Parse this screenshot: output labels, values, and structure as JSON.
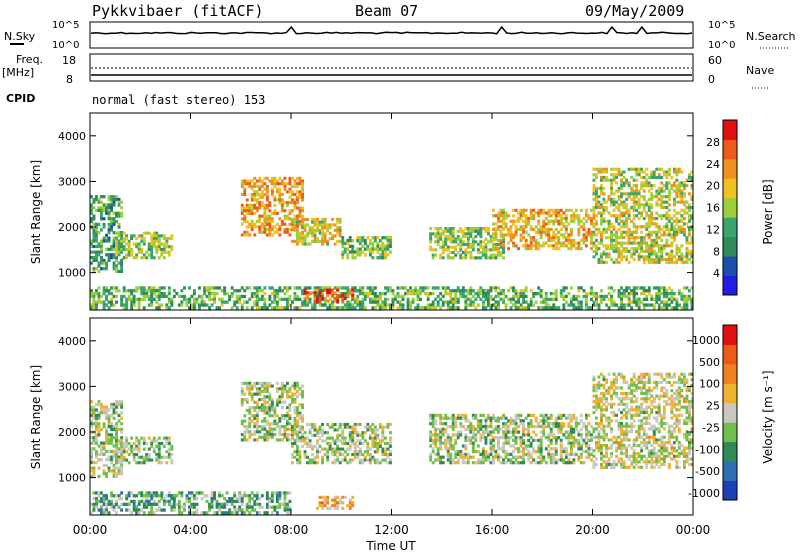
{
  "header": {
    "title": "Pykkvibaer (fitACF)",
    "beam": "Beam 07",
    "date": "09/May/2009"
  },
  "strip": {
    "nsky_label": "N.Sky",
    "nsky_ticks": [
      "10^5",
      "10^0"
    ],
    "nsearch_label": "N.Search",
    "nsearch_ticks": [
      "10^5",
      "10^0"
    ],
    "freq_label": "Freq.",
    "freq_unit": "[MHz]",
    "freq_ticks": [
      "18",
      "8"
    ],
    "nave_label": "Nave",
    "nave_ticks": [
      "60",
      "0"
    ],
    "cpid_label": "CPID",
    "cpid_text": "normal (fast stereo) 153"
  },
  "chart_data": [
    {
      "type": "heatmap",
      "name": "power",
      "ylabel": "Slant Range [km]",
      "ylim": [
        180,
        4500
      ],
      "yticks": [
        "1000",
        "2000",
        "3000",
        "4000"
      ],
      "xlim": [
        0,
        24
      ],
      "colorbar": {
        "label": "Power [dB]",
        "ticks": [
          "4",
          "8",
          "12",
          "16",
          "20",
          "24",
          "28"
        ],
        "colors": [
          "#1e1ee6",
          "#1a4fb0",
          "#2f8a55",
          "#3aa56a",
          "#9ccf3a",
          "#f2c020",
          "#f09020",
          "#ef5a1a",
          "#e01010"
        ]
      },
      "bands": [
        {
          "t0": 0.0,
          "t1": 1.3,
          "r0": 1000,
          "r1": 2700,
          "level": 0.35
        },
        {
          "t0": 1.0,
          "t1": 3.3,
          "r0": 1300,
          "r1": 1900,
          "level": 0.5
        },
        {
          "t0": 6.0,
          "t1": 8.5,
          "r0": 1800,
          "r1": 3100,
          "level": 0.7
        },
        {
          "t0": 8.0,
          "t1": 10.0,
          "r0": 1600,
          "r1": 2200,
          "level": 0.6
        },
        {
          "t0": 10.0,
          "t1": 12.0,
          "r0": 1300,
          "r1": 1800,
          "level": 0.45
        },
        {
          "t0": 13.5,
          "t1": 16.5,
          "r0": 1300,
          "r1": 2000,
          "level": 0.5
        },
        {
          "t0": 16.0,
          "t1": 20.0,
          "r0": 1500,
          "r1": 2400,
          "level": 0.65
        },
        {
          "t0": 20.0,
          "t1": 24.0,
          "r0": 1200,
          "r1": 3300,
          "level": 0.55
        },
        {
          "t0": 0.0,
          "t1": 24.0,
          "r0": 200,
          "r1": 700,
          "level": 0.4
        },
        {
          "t0": 8.5,
          "t1": 10.5,
          "r0": 350,
          "r1": 650,
          "level": 0.85
        }
      ]
    },
    {
      "type": "heatmap",
      "name": "velocity",
      "ylabel": "Slant Range [km]",
      "ylim": [
        180,
        4500
      ],
      "yticks": [
        "1000",
        "2000",
        "3000",
        "4000"
      ],
      "xlim": [
        0,
        24
      ],
      "xticks": [
        "00:00",
        "04:00",
        "08:00",
        "12:00",
        "16:00",
        "20:00",
        "00:00"
      ],
      "xlabel": "Time UT",
      "colorbar": {
        "label": "Velocity [m s⁻¹]",
        "ticks": [
          "1000",
          "500",
          "100",
          "25",
          "-25",
          "-100",
          "-500",
          "-1000"
        ],
        "colors": [
          "#1f3fb8",
          "#2e6fb0",
          "#2f8a55",
          "#6fbf4a",
          "#c8c8c0",
          "#f0b030",
          "#f08020",
          "#ef5a1a",
          "#e01010"
        ]
      },
      "bands": [
        {
          "t0": 0.0,
          "t1": 1.3,
          "r0": 1000,
          "r1": 2700,
          "level": 0.45
        },
        {
          "t0": 1.0,
          "t1": 3.3,
          "r0": 1300,
          "r1": 1900,
          "level": 0.45
        },
        {
          "t0": 6.0,
          "t1": 8.5,
          "r0": 1800,
          "r1": 3100,
          "level": 0.45
        },
        {
          "t0": 8.0,
          "t1": 12.0,
          "r0": 1300,
          "r1": 2200,
          "level": 0.45
        },
        {
          "t0": 13.5,
          "t1": 20.0,
          "r0": 1300,
          "r1": 2400,
          "level": 0.45
        },
        {
          "t0": 20.0,
          "t1": 24.0,
          "r0": 1200,
          "r1": 3300,
          "level": 0.5
        },
        {
          "t0": 0.0,
          "t1": 8.0,
          "r0": 200,
          "r1": 700,
          "level": 0.35
        },
        {
          "t0": 9.0,
          "t1": 10.5,
          "r0": 300,
          "r1": 600,
          "level": 0.62
        }
      ]
    }
  ]
}
